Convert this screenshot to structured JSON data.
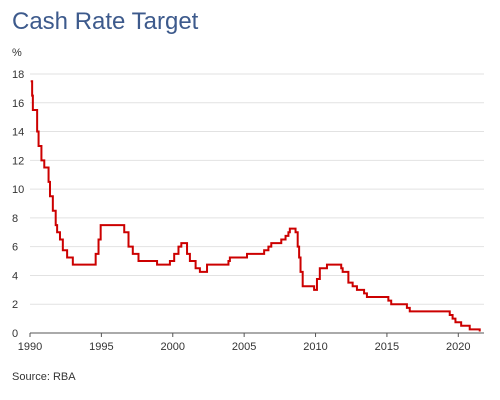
{
  "chart_data": {
    "type": "line",
    "title": "Cash Rate Target",
    "ylabel": "%",
    "xlabel": "",
    "source": "Source: RBA",
    "xlim": [
      1990,
      2021.8
    ],
    "ylim": [
      0,
      18
    ],
    "yticks": [
      0,
      2,
      4,
      6,
      8,
      10,
      12,
      14,
      16,
      18
    ],
    "xticks": [
      1990,
      1995,
      2000,
      2005,
      2010,
      2015,
      2020
    ],
    "grid": true,
    "line_color": "#cc0000",
    "series": [
      {
        "x": [
          1990.05,
          1990.15,
          1990.2,
          1990.5,
          1990.6,
          1990.8,
          1991.0,
          1991.3,
          1991.4,
          1991.6,
          1991.8,
          1991.9,
          1992.1,
          1992.3,
          1992.6,
          1993.0,
          1993.6,
          1994.6,
          1994.8,
          1994.95,
          1995.0,
          1996.6,
          1996.9,
          1997.2,
          1997.6,
          1998.9,
          1999.8,
          2000.1,
          2000.4,
          2000.6,
          2001.0,
          2001.2,
          2001.6,
          2001.9,
          2002.4,
          2002.6,
          2003.9,
          2004.0,
          2005.2,
          2006.4,
          2006.7,
          2006.9,
          2007.6,
          2007.9,
          2008.1,
          2008.2,
          2008.6,
          2008.75,
          2008.85,
          2008.95,
          2009.1,
          2009.9,
          2010.1,
          2010.3,
          2010.8,
          2011.8,
          2011.9,
          2012.3,
          2012.5,
          2012.6,
          2012.9,
          2013.4,
          2013.6,
          2015.1,
          2015.3,
          2016.4,
          2016.6,
          2019.4,
          2019.6,
          2019.8,
          2020.2,
          2020.8,
          2021.5
        ],
        "values": [
          17.5,
          16.5,
          15.5,
          14.0,
          13.0,
          12.0,
          11.5,
          10.5,
          9.5,
          8.5,
          7.5,
          7.0,
          6.5,
          5.75,
          5.25,
          4.75,
          4.75,
          5.5,
          6.5,
          7.5,
          7.5,
          7.0,
          6.0,
          5.5,
          5.0,
          4.75,
          5.0,
          5.5,
          6.0,
          6.25,
          5.5,
          5.0,
          4.5,
          4.25,
          4.75,
          4.75,
          5.0,
          5.25,
          5.5,
          5.75,
          6.0,
          6.25,
          6.5,
          6.75,
          7.0,
          7.25,
          7.0,
          6.0,
          5.25,
          4.25,
          3.25,
          3.0,
          3.75,
          4.5,
          4.75,
          4.5,
          4.25,
          3.5,
          3.5,
          3.25,
          3.0,
          2.75,
          2.5,
          2.25,
          2.0,
          1.75,
          1.5,
          1.25,
          1.0,
          0.75,
          0.5,
          0.25,
          0.1
        ]
      }
    ]
  }
}
